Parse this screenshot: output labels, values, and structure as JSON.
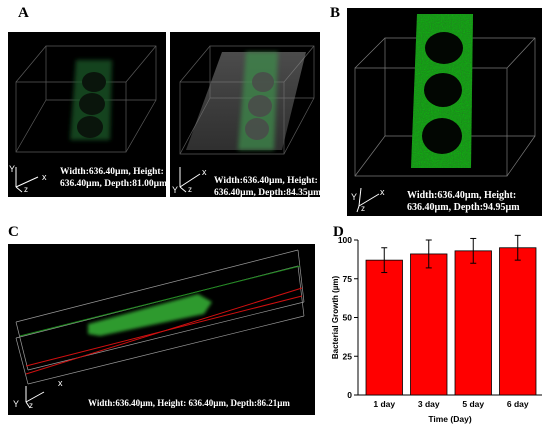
{
  "panel_labels": {
    "a": "A",
    "b": "B",
    "c": "C",
    "d": "D"
  },
  "panel_a_left": {
    "dims_line1": "Width:636.40µm, Height:",
    "dims_line2": "636.40µm, Depth:81.00µm",
    "axis_x": "x",
    "axis_y": "Y",
    "axis_z": "z"
  },
  "panel_a_right": {
    "dims_line1": "Width:636.40µm, Height:",
    "dims_line2": "636.40µm, Depth:84.35µm",
    "axis_x": "x",
    "axis_y": "Y",
    "axis_z": "z"
  },
  "panel_b": {
    "dims_line1": "Width:636.40µm, Height:",
    "dims_line2": "636.40µm, Depth:94.95µm",
    "axis_x": "x",
    "axis_y": "Y",
    "axis_z": "z"
  },
  "panel_c": {
    "dims_line1": "Width:636.40µm, Height: 636.40µm, Depth:86.21µm",
    "axis_x": "x",
    "axis_y": "Y",
    "axis_z": "z"
  },
  "colors": {
    "bar": "#ff0000",
    "signal": "#2ea82e",
    "panel_bg": "#000000"
  },
  "chart_data": {
    "type": "bar",
    "categories": [
      "1 day",
      "3 day",
      "5 day",
      "6 day"
    ],
    "values": [
      87,
      91,
      93,
      95
    ],
    "errors": [
      8,
      9,
      8,
      8
    ],
    "xlabel": "Time (Day)",
    "ylabel": "Bacterial Growth (µm)",
    "ylim": [
      0,
      100
    ],
    "yticks": [
      "0",
      "25",
      "50",
      "75",
      "100"
    ],
    "grid": false,
    "legend": "none"
  }
}
